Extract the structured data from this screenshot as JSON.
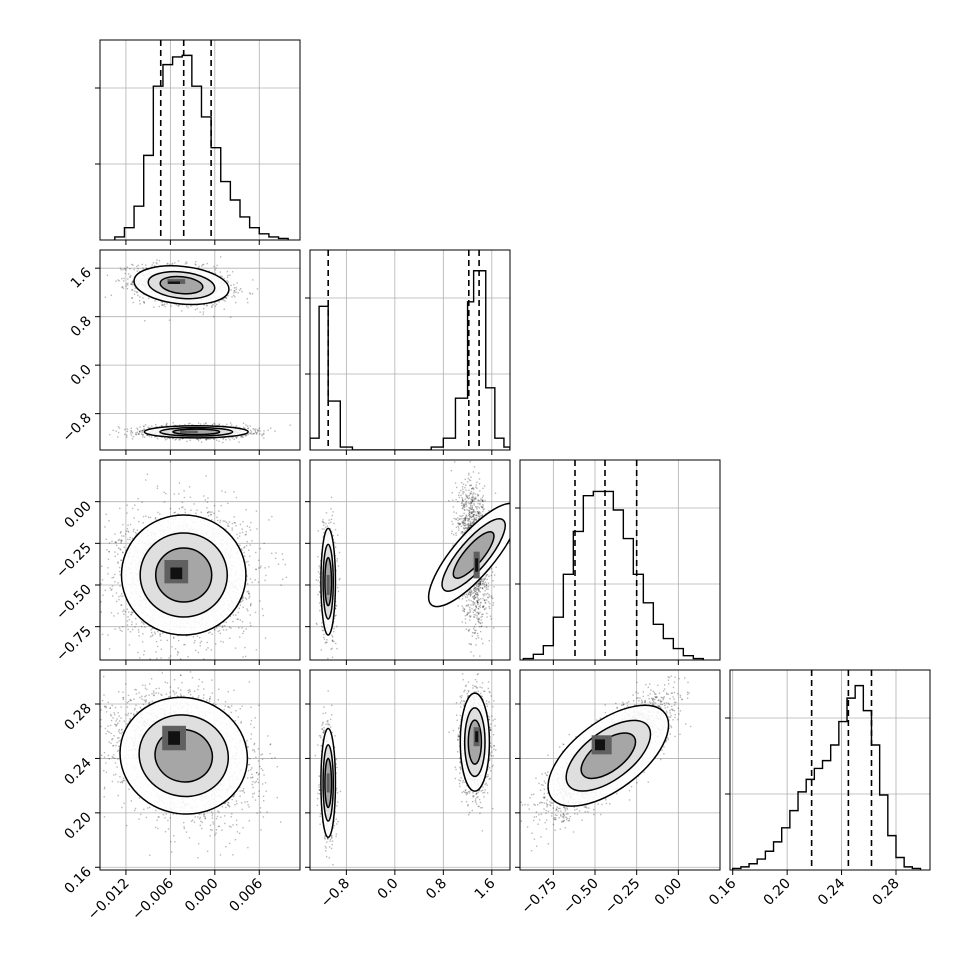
{
  "chart_data": {
    "type": "corner",
    "grid": true,
    "parameters": [
      {
        "ticks": [
          -0.012,
          -0.006,
          0.0,
          0.006
        ],
        "tick_labels": [
          "−0.012",
          "−0.006",
          "0.000",
          "0.006"
        ],
        "range": [
          -0.0155,
          0.0115
        ],
        "quantiles": [
          -0.0073,
          -0.0042,
          -0.0005
        ],
        "hist": {
          "bin_edges": [
            -0.0135,
            -0.0122,
            -0.0109,
            -0.0096,
            -0.0083,
            -0.007,
            -0.0057,
            -0.0044,
            -0.0031,
            -0.0018,
            -0.0005,
            0.0008,
            0.0021,
            0.0034,
            0.0047,
            0.006,
            0.0073,
            0.0086,
            0.0099
          ],
          "counts": [
            2,
            8,
            22,
            55,
            100,
            114,
            119,
            120,
            100,
            80,
            60,
            38,
            26,
            15,
            8,
            4,
            2,
            1
          ],
          "ymax": 130
        }
      },
      {
        "ticks": [
          -0.8,
          0.0,
          0.8,
          1.6
        ],
        "tick_labels": [
          "−0.8",
          "0.0",
          "0.8",
          "1.6"
        ],
        "range": [
          -1.4,
          1.9
        ],
        "quantiles": [
          -1.1,
          1.22,
          1.39
        ],
        "hist": {
          "bin_edges": [
            -1.4,
            -1.25,
            -1.1,
            -0.9,
            -0.7,
            0.0,
            0.6,
            0.8,
            1.0,
            1.2,
            1.3,
            1.4,
            1.5,
            1.65,
            1.8,
            1.9
          ],
          "counts": [
            8,
            97,
            33,
            2,
            0,
            0,
            2,
            8,
            35,
            100,
            121,
            121,
            42,
            8,
            2
          ],
          "ymax": 135
        }
      },
      {
        "ticks": [
          -0.75,
          -0.5,
          -0.25,
          0.0
        ],
        "tick_labels": [
          "−0.75",
          "−0.50",
          "−0.25",
          "0.00"
        ],
        "range": [
          -0.95,
          0.25
        ],
        "quantiles": [
          -0.62,
          -0.44,
          -0.25
        ],
        "hist": {
          "bin_edges": [
            -0.93,
            -0.87,
            -0.81,
            -0.75,
            -0.69,
            -0.63,
            -0.57,
            -0.51,
            -0.45,
            -0.39,
            -0.33,
            -0.27,
            -0.21,
            -0.15,
            -0.09,
            -0.03,
            0.03,
            0.09,
            0.15
          ],
          "counts": [
            1,
            4,
            10,
            30,
            60,
            90,
            115,
            118,
            118,
            105,
            85,
            60,
            40,
            25,
            15,
            8,
            3,
            1
          ],
          "ymax": 140
        }
      },
      {
        "ticks": [
          0.16,
          0.2,
          0.24,
          0.28
        ],
        "tick_labels": [
          "0.16",
          "0.20",
          "0.24",
          "0.28"
        ],
        "range": [
          0.158,
          0.305
        ],
        "quantiles": [
          0.218,
          0.245,
          0.262
        ],
        "hist": {
          "bin_edges": [
            0.16,
            0.166,
            0.172,
            0.178,
            0.184,
            0.19,
            0.196,
            0.202,
            0.208,
            0.214,
            0.22,
            0.226,
            0.232,
            0.238,
            0.244,
            0.25,
            0.256,
            0.262,
            0.268,
            0.274,
            0.28,
            0.286,
            0.292,
            0.298
          ],
          "counts": [
            1,
            2,
            4,
            7,
            12,
            18,
            27,
            38,
            50,
            58,
            65,
            70,
            80,
            95,
            110,
            118,
            102,
            80,
            48,
            22,
            8,
            2,
            1
          ],
          "ymax": 128
        }
      }
    ],
    "pairs": [
      {
        "x": 0,
        "y": 1,
        "clusters": [
          {
            "center": [
              -0.0045,
              1.32
            ],
            "sd": [
              0.0032,
              0.16
            ],
            "n": 1700,
            "tilt": -0.25,
            "cores": [
              [
                -0.0052,
                1.38,
                0.0012,
                0.04
              ],
              [
                -0.0055,
                1.36,
                0.0008,
                0.02
              ]
            ]
          },
          {
            "center": [
              -0.0025,
              -1.1
            ],
            "sd": [
              0.0035,
              0.05
            ],
            "n": 1700,
            "tilt": 0,
            "cores": [
              [
                -0.0035,
                -1.1,
                0.0012,
                0.02
              ]
            ]
          }
        ]
      },
      {
        "x": 0,
        "y": 2,
        "clusters": [
          {
            "center": [
              -0.0042,
              -0.44
            ],
            "sd": [
              0.0042,
              0.18
            ],
            "n": 3400,
            "tilt": 0,
            "cores": [
              [
                -0.0052,
                -0.42,
                0.0016,
                0.07
              ],
              [
                -0.0052,
                -0.43,
                0.0008,
                0.035
              ]
            ]
          }
        ]
      },
      {
        "x": 0,
        "y": 3,
        "clusters": [
          {
            "center": [
              -0.0042,
              0.242
            ],
            "sd": [
              0.0042,
              0.022
            ],
            "n": 3400,
            "tilt": -0.25,
            "cores": [
              [
                -0.0055,
                0.255,
                0.0016,
                0.009
              ],
              [
                -0.0055,
                0.255,
                0.0008,
                0.005
              ]
            ]
          }
        ]
      },
      {
        "x": 1,
        "y": 2,
        "clusters": [
          {
            "center": [
              -1.1,
              -0.48
            ],
            "sd": [
              0.06,
              0.16
            ],
            "n": 900,
            "tilt": 0,
            "cores": [
              [
                -1.1,
                -0.5,
                0.025,
                0.06
              ]
            ]
          },
          {
            "center": [
              1.3,
              -0.32
            ],
            "sd": [
              0.13,
              0.2
            ],
            "n": 1700,
            "tilt": -0.2,
            "cores": [
              [
                1.35,
                -0.38,
                0.05,
                0.08
              ],
              [
                1.35,
                -0.38,
                0.025,
                0.04
              ]
            ]
          }
        ]
      },
      {
        "x": 1,
        "y": 3,
        "clusters": [
          {
            "center": [
              -1.1,
              0.222
            ],
            "sd": [
              0.06,
              0.02
            ],
            "n": 900,
            "tilt": 0,
            "cores": [
              [
                -1.1,
                0.222,
                0.025,
                0.007
              ]
            ]
          },
          {
            "center": [
              1.32,
              0.252
            ],
            "sd": [
              0.12,
              0.018
            ],
            "n": 1700,
            "tilt": 0,
            "cores": [
              [
                1.35,
                0.256,
                0.05,
                0.007
              ],
              [
                1.35,
                0.256,
                0.025,
                0.004
              ]
            ]
          }
        ]
      },
      {
        "x": 2,
        "y": 3,
        "clusters": [
          {
            "center": [
              -0.42,
              0.242
            ],
            "sd": [
              0.17,
              0.02
            ],
            "n": 3400,
            "tilt": 0.78,
            "cores": [
              [
                -0.46,
                0.25,
                0.06,
                0.007
              ],
              [
                -0.47,
                0.25,
                0.03,
                0.004
              ]
            ]
          }
        ]
      }
    ]
  }
}
